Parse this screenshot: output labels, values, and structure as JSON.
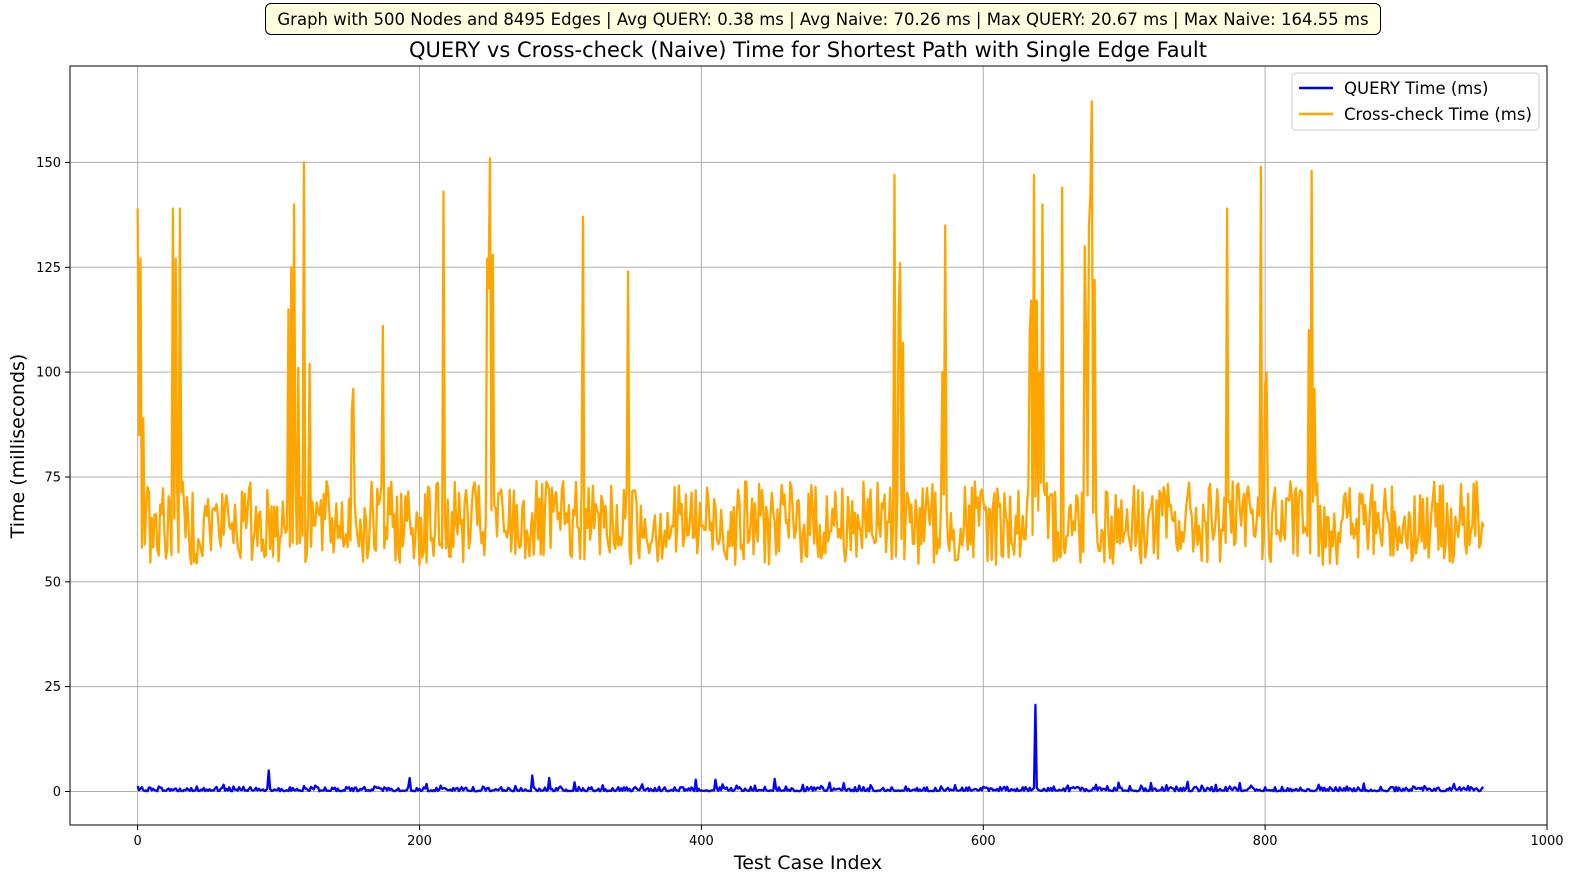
{
  "chart_data": {
    "type": "line",
    "annotation": "Graph with 500 Nodes and 8495 Edges | Avg QUERY: 0.38 ms | Avg Naive: 70.26 ms | Max QUERY: 20.67 ms | Max Naive: 164.55 ms",
    "title": "QUERY vs Cross-check (Naive) Time for Shortest Path with Single Edge Fault",
    "xlabel": "Test Case Index",
    "ylabel": "Time (milliseconds)",
    "xlim": [
      -48,
      1000
    ],
    "ylim": [
      -8,
      173
    ],
    "xticks": [
      0,
      200,
      400,
      600,
      800,
      1000
    ],
    "yticks": [
      0,
      25,
      50,
      75,
      100,
      125,
      150
    ],
    "xtick_labels": [
      "0",
      "200",
      "400",
      "600",
      "800",
      "1000"
    ],
    "ytick_labels": [
      "0",
      "25",
      "50",
      "75",
      "100",
      "125",
      "150"
    ],
    "grid": true,
    "legend_position": "top-right",
    "n_points": 956,
    "series": [
      {
        "name": "QUERY Time (ms)",
        "color": "#0000ff",
        "baseline": 0.38,
        "spikes": [
          [
            0,
            1.3
          ],
          [
            8,
            0.9
          ],
          [
            15,
            1.2
          ],
          [
            22,
            0.7
          ],
          [
            42,
            1.2
          ],
          [
            55,
            0.8
          ],
          [
            61,
            1.6
          ],
          [
            68,
            1.2
          ],
          [
            75,
            1.1
          ],
          [
            93,
            5.0
          ],
          [
            100,
            0.8
          ],
          [
            108,
            1.0
          ],
          [
            118,
            1.3
          ],
          [
            126,
            1.4
          ],
          [
            140,
            0.9
          ],
          [
            150,
            1.0
          ],
          [
            160,
            0.8
          ],
          [
            168,
            1.2
          ],
          [
            178,
            0.9
          ],
          [
            193,
            3.2
          ],
          [
            205,
            1.8
          ],
          [
            215,
            1.4
          ],
          [
            230,
            1.0
          ],
          [
            245,
            1.2
          ],
          [
            258,
            1.0
          ],
          [
            268,
            1.3
          ],
          [
            280,
            3.8
          ],
          [
            292,
            3.2
          ],
          [
            300,
            1.2
          ],
          [
            310,
            2.2
          ],
          [
            322,
            1.0
          ],
          [
            330,
            1.5
          ],
          [
            345,
            1.0
          ],
          [
            358,
            1.7
          ],
          [
            370,
            1.1
          ],
          [
            385,
            1.0
          ],
          [
            396,
            2.8
          ],
          [
            410,
            2.8
          ],
          [
            415,
            1.7
          ],
          [
            425,
            1.4
          ],
          [
            438,
            1.4
          ],
          [
            452,
            3.0
          ],
          [
            460,
            1.2
          ],
          [
            472,
            1.6
          ],
          [
            485,
            1.3
          ],
          [
            491,
            2.1
          ],
          [
            501,
            2.0
          ],
          [
            512,
            1.4
          ],
          [
            520,
            1.5
          ],
          [
            535,
            1.0
          ],
          [
            545,
            1.2
          ],
          [
            558,
            0.9
          ],
          [
            570,
            1.2
          ],
          [
            580,
            1.5
          ],
          [
            590,
            1.0
          ],
          [
            602,
            0.9
          ],
          [
            615,
            1.1
          ],
          [
            628,
            1.0
          ],
          [
            637,
            20.67
          ],
          [
            650,
            1.2
          ],
          [
            660,
            1.4
          ],
          [
            670,
            0.9
          ],
          [
            680,
            1.6
          ],
          [
            688,
            1.3
          ],
          [
            696,
            2.1
          ],
          [
            704,
            1.3
          ],
          [
            712,
            1.4
          ],
          [
            719,
            2.0
          ],
          [
            730,
            1.5
          ],
          [
            737,
            1.2
          ],
          [
            745,
            2.3
          ],
          [
            755,
            1.4
          ],
          [
            765,
            1.6
          ],
          [
            775,
            1.2
          ],
          [
            782,
            2.0
          ],
          [
            790,
            1.4
          ],
          [
            800,
            1.0
          ],
          [
            812,
            1.1
          ],
          [
            825,
            0.9
          ],
          [
            838,
            1.6
          ],
          [
            850,
            1.0
          ],
          [
            858,
            1.2
          ],
          [
            870,
            1.9
          ],
          [
            882,
            1.1
          ],
          [
            895,
            0.9
          ],
          [
            905,
            1.2
          ],
          [
            913,
            1.3
          ],
          [
            922,
            0.8
          ],
          [
            934,
            1.8
          ],
          [
            944,
            1.3
          ],
          [
            955,
            1.0
          ]
        ]
      },
      {
        "name": "Cross-check Time (ms)",
        "color": "#ffa500",
        "baseline": 65,
        "spikes": [
          [
            0,
            139
          ],
          [
            1,
            85
          ],
          [
            2,
            127
          ],
          [
            4,
            89
          ],
          [
            25,
            139
          ],
          [
            27,
            127
          ],
          [
            30,
            139
          ],
          [
            107,
            115
          ],
          [
            109,
            125
          ],
          [
            111,
            140
          ],
          [
            114,
            101
          ],
          [
            118,
            150
          ],
          [
            122,
            102
          ],
          [
            152,
            91
          ],
          [
            153,
            96
          ],
          [
            174,
            111
          ],
          [
            217,
            143
          ],
          [
            248,
            127
          ],
          [
            249,
            120
          ],
          [
            250,
            151
          ],
          [
            252,
            128
          ],
          [
            316,
            137
          ],
          [
            348,
            124
          ],
          [
            537,
            147
          ],
          [
            540,
            115
          ],
          [
            541,
            126
          ],
          [
            543,
            107
          ],
          [
            571,
            100
          ],
          [
            573,
            135
          ],
          [
            633,
            110
          ],
          [
            634,
            117
          ],
          [
            636,
            147
          ],
          [
            638,
            117
          ],
          [
            640,
            100
          ],
          [
            642,
            140
          ],
          [
            656,
            144
          ],
          [
            672,
            130
          ],
          [
            673,
            108
          ],
          [
            675,
            135
          ],
          [
            676,
            142
          ],
          [
            677,
            164.55
          ],
          [
            679,
            122
          ],
          [
            773,
            139
          ],
          [
            797,
            149
          ],
          [
            800,
            97
          ],
          [
            801,
            100
          ],
          [
            831,
            110
          ],
          [
            833,
            148
          ],
          [
            835,
            96
          ]
        ]
      }
    ]
  }
}
